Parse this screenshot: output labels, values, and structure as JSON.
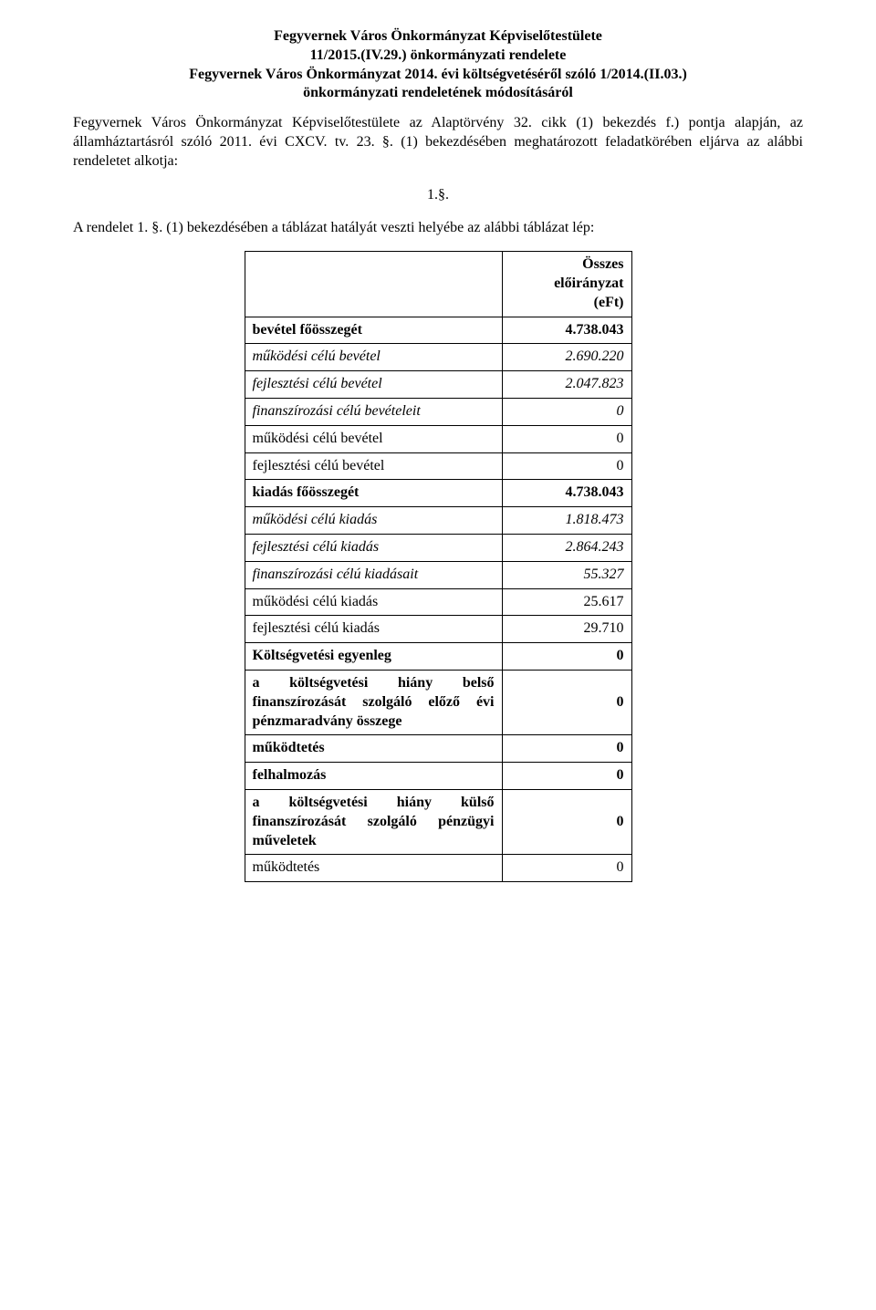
{
  "header": {
    "line1": "Fegyvernek Város Önkormányzat Képviselőtestülete",
    "line2": "11/2015.(IV.29.) önkormányzati rendelete",
    "line3": "Fegyvernek Város Önkormányzat 2014. évi költségvetéséről szóló 1/2014.(II.03.)",
    "line4": "önkormányzati rendeletének módosításáról"
  },
  "para1": "Fegyvernek Város Önkormányzat Képviselőtestülete az Alaptörvény 32. cikk (1) bekezdés f.) pontja alapján, az államháztartásról szóló 2011. évi CXCV. tv. 23. §. (1) bekezdésében meghatározott feladatkörében eljárva az alábbi rendeletet alkotja:",
  "sectionNumber": "1.§.",
  "para2": "A rendelet 1. §. (1) bekezdésében a táblázat hatályát veszti helyébe az alábbi táblázat lép:",
  "table": {
    "header": {
      "title": "Összes előirányzat",
      "unit": "(eFt)"
    },
    "rows": [
      {
        "label": "bevétel főösszegét",
        "value": "4.738.043",
        "bold": true
      },
      {
        "label": "működési célú bevétel",
        "value": "2.690.220",
        "italic": true
      },
      {
        "label": "fejlesztési célú bevétel",
        "value": "2.047.823",
        "italic": true
      },
      {
        "label": "finanszírozási célú bevételeit",
        "value": "0",
        "italic": true
      },
      {
        "label": "működési célú bevétel",
        "value": "0"
      },
      {
        "label": "fejlesztési célú bevétel",
        "value": "0"
      },
      {
        "label": "kiadás főösszegét",
        "value": "4.738.043",
        "bold": true
      },
      {
        "label": "működési célú kiadás",
        "value": "1.818.473",
        "italic": true
      },
      {
        "label": "fejlesztési célú kiadás",
        "value": "2.864.243",
        "italic": true
      },
      {
        "label": "finanszírozási célú kiadásait",
        "value": "55.327",
        "italic": true
      },
      {
        "label": "működési célú kiadás",
        "value": "25.617"
      },
      {
        "label": "fejlesztési célú kiadás",
        "value": "29.710"
      },
      {
        "label": "Költségvetési egyenleg",
        "value": "0",
        "bold": true
      },
      {
        "label": "a költségvetési hiány belső finanszírozását szolgáló előző évi pénzmaradvány összege",
        "value": "0",
        "bold": true
      },
      {
        "label": "működtetés",
        "value": "0",
        "bold": true
      },
      {
        "label": "felhalmozás",
        "value": "0",
        "bold": true
      },
      {
        "label": "a költségvetési hiány külső finanszírozását szolgáló pénzügyi műveletek",
        "value": "0",
        "bold": true
      },
      {
        "label": "működtetés",
        "value": "0"
      }
    ]
  }
}
